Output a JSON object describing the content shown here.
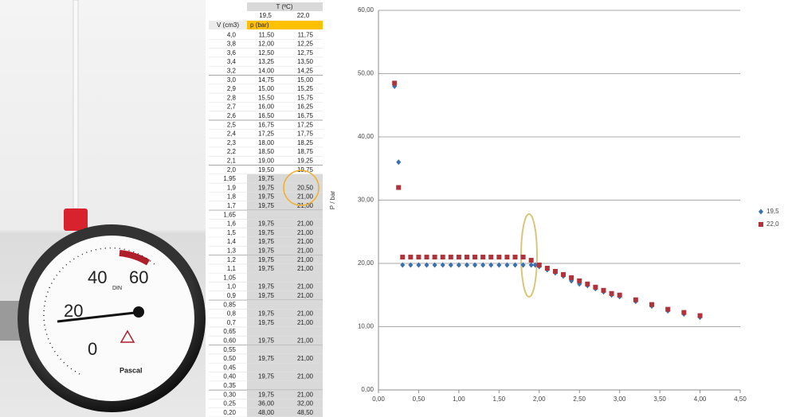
{
  "photo": {
    "dial_labels": [
      "0",
      "20",
      "40",
      "60"
    ],
    "dial_mark": "DIN",
    "brand": "Pascal"
  },
  "table": {
    "group_header": "T (ºC)",
    "temperatures": [
      "19,5",
      "22,0"
    ],
    "column_headers": [
      "V (cm3)",
      "p (bar)"
    ],
    "rows": [
      [
        "4,0",
        "11,50",
        "11,75"
      ],
      [
        "3,8",
        "12,00",
        "12,25"
      ],
      [
        "3,6",
        "12,50",
        "12,75"
      ],
      [
        "3,4",
        "13,25",
        "13,50"
      ],
      [
        "3,2",
        "14,00",
        "14,25"
      ],
      [
        "3,0",
        "14,75",
        "15,00"
      ],
      [
        "2,9",
        "15,00",
        "15,25"
      ],
      [
        "2,8",
        "15,50",
        "15,75"
      ],
      [
        "2,7",
        "16,00",
        "16,25"
      ],
      [
        "2,6",
        "16,50",
        "16,75"
      ],
      [
        "2,5",
        "16,75",
        "17,25"
      ],
      [
        "2,4",
        "17,25",
        "17,75"
      ],
      [
        "2,3",
        "18,00",
        "18,25"
      ],
      [
        "2,2",
        "18,50",
        "18,75"
      ],
      [
        "2,1",
        "19,00",
        "19,25"
      ],
      [
        "2,0",
        "19,50",
        "19,75"
      ],
      [
        "1,95",
        "19,75",
        null
      ],
      [
        "1,9",
        "19,75",
        "20,50"
      ],
      [
        "1,8",
        "19,75",
        "21,00"
      ],
      [
        "1,7",
        "19,75",
        "21,00"
      ],
      [
        "1,65",
        null,
        null
      ],
      [
        "1,6",
        "19,75",
        "21,00"
      ],
      [
        "1,5",
        "19,75",
        "21,00"
      ],
      [
        "1,4",
        "19,75",
        "21,00"
      ],
      [
        "1,3",
        "19,75",
        "21,00"
      ],
      [
        "1,2",
        "19,75",
        "21,00"
      ],
      [
        "1,1",
        "19,75",
        "21,00"
      ],
      [
        "1,05",
        null,
        null
      ],
      [
        "1,0",
        "19,75",
        "21,00"
      ],
      [
        "0,9",
        "19,75",
        "21,00"
      ],
      [
        "0,85",
        null,
        null
      ],
      [
        "0,8",
        "19,75",
        "21,00"
      ],
      [
        "0,7",
        "19,75",
        "21,00"
      ],
      [
        "0,65",
        null,
        null
      ],
      [
        "0,60",
        "19,75",
        "21,00"
      ],
      [
        "0,55",
        null,
        null
      ],
      [
        "0,50",
        "19,75",
        "21,00"
      ],
      [
        "0,45",
        null,
        null
      ],
      [
        "0,40",
        "19,75",
        "21,00"
      ],
      [
        "0,35",
        null,
        null
      ],
      [
        "0,30",
        "19,75",
        "21,00"
      ],
      [
        "0,25",
        "36,00",
        "32,00"
      ],
      [
        "0,20",
        "48,00",
        "48,50"
      ]
    ]
  },
  "chart_data": {
    "type": "scatter",
    "y_label": "P / bar",
    "xlim": [
      0,
      4.5
    ],
    "xticks": [
      {
        "value": 0,
        "label": "0,00"
      },
      {
        "value": 0.5,
        "label": "0,50"
      },
      {
        "value": 1,
        "label": "1,00"
      },
      {
        "value": 1.5,
        "label": "1,50"
      },
      {
        "value": 2,
        "label": "2,00"
      },
      {
        "value": 2.5,
        "label": "2,50"
      },
      {
        "value": 3,
        "label": "3,00"
      },
      {
        "value": 3.5,
        "label": "3,50"
      },
      {
        "value": 4,
        "label": "4,00"
      },
      {
        "value": 4.5,
        "label": "4,50"
      }
    ],
    "ylim": [
      0,
      60
    ],
    "yticks": [
      {
        "value": 0,
        "label": "0,00"
      },
      {
        "value": 10,
        "label": "10,00"
      },
      {
        "value": 20,
        "label": "20,00"
      },
      {
        "value": 30,
        "label": "30,00"
      },
      {
        "value": 40,
        "label": "40,00"
      },
      {
        "value": 50,
        "label": "50,00"
      },
      {
        "value": 60,
        "label": "60,00"
      }
    ],
    "grid": true,
    "legend": "right",
    "series": [
      {
        "name": "19,5",
        "color": "#3a6fb0",
        "marker": "diamond",
        "x": [
          0.2,
          0.25,
          0.3,
          0.4,
          0.5,
          0.6,
          0.7,
          0.8,
          0.9,
          1.0,
          1.1,
          1.2,
          1.3,
          1.4,
          1.5,
          1.6,
          1.7,
          1.8,
          1.9,
          1.95,
          2.0,
          2.1,
          2.2,
          2.3,
          2.4,
          2.5,
          2.6,
          2.7,
          2.8,
          2.9,
          3.0,
          3.2,
          3.4,
          3.6,
          3.8,
          4.0
        ],
        "values": [
          48,
          36,
          19.75,
          19.75,
          19.75,
          19.75,
          19.75,
          19.75,
          19.75,
          19.75,
          19.75,
          19.75,
          19.75,
          19.75,
          19.75,
          19.75,
          19.75,
          19.75,
          19.75,
          19.75,
          19.5,
          19,
          18.5,
          18,
          17.25,
          16.75,
          16.5,
          16,
          15.5,
          15,
          14.75,
          14,
          13.25,
          12.5,
          12,
          11.5
        ]
      },
      {
        "name": "22,0",
        "color": "#b0333a",
        "marker": "square",
        "x": [
          0.2,
          0.25,
          0.3,
          0.4,
          0.5,
          0.6,
          0.7,
          0.8,
          0.9,
          1.0,
          1.1,
          1.2,
          1.3,
          1.4,
          1.5,
          1.6,
          1.7,
          1.8,
          1.9,
          2.0,
          2.1,
          2.2,
          2.3,
          2.4,
          2.5,
          2.6,
          2.7,
          2.8,
          2.9,
          3.0,
          3.2,
          3.4,
          3.6,
          3.8,
          4.0
        ],
        "values": [
          48.5,
          32,
          21,
          21,
          21,
          21,
          21,
          21,
          21,
          21,
          21,
          21,
          21,
          21,
          21,
          21,
          21,
          21,
          20.5,
          19.75,
          19.25,
          18.75,
          18.25,
          17.75,
          17.25,
          16.75,
          16.25,
          15.75,
          15.25,
          15,
          14.25,
          13.5,
          12.75,
          12.25,
          11.75
        ]
      }
    ]
  }
}
